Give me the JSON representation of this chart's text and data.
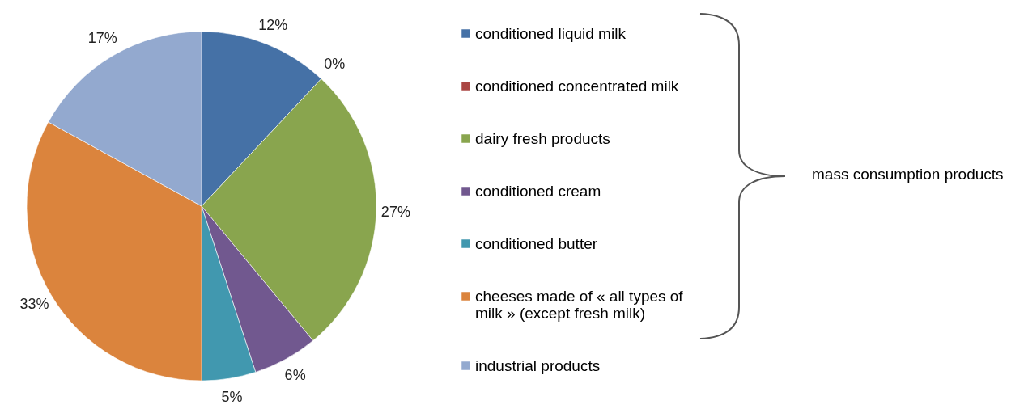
{
  "chart_data": {
    "type": "pie",
    "categories": [
      "conditioned liquid milk",
      "conditioned concentrated milk",
      "dairy fresh products",
      "conditioned cream",
      "conditioned butter",
      "cheeses made of « all types of milk » (except fresh milk)",
      "industrial products"
    ],
    "values": [
      12,
      0,
      27,
      6,
      5,
      33,
      17
    ],
    "colors": [
      "#4571a6",
      "#aa4643",
      "#89a54e",
      "#71588f",
      "#4198af",
      "#db843d",
      "#93a9cf"
    ],
    "value_labels": [
      "12%",
      "0%",
      "27%",
      "6%",
      "5%",
      "33%",
      "17%"
    ],
    "legend": "right",
    "annotations": [
      "mass consumption products"
    ]
  }
}
